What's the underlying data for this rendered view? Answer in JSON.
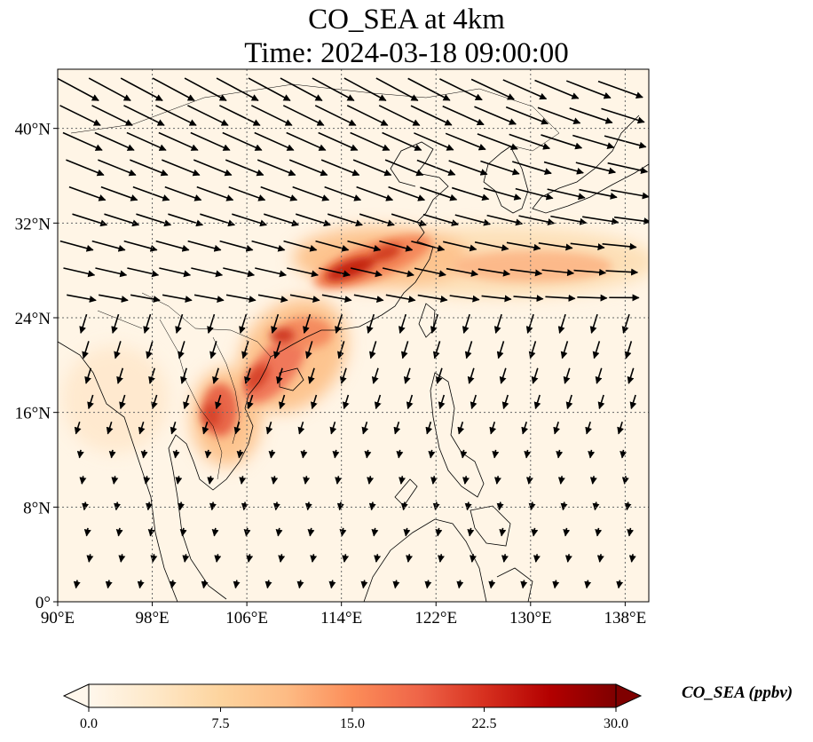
{
  "title": "CO_SEA at 4km",
  "subtitle": "Time: 2024-03-18 09:00:00",
  "map": {
    "lon_range": [
      90,
      140
    ],
    "lat_range": [
      0,
      45
    ],
    "lon_ticks": [
      {
        "value": 90,
        "label": "90°E"
      },
      {
        "value": 98,
        "label": "98°E"
      },
      {
        "value": 106,
        "label": "106°E"
      },
      {
        "value": 114,
        "label": "114°E"
      },
      {
        "value": 122,
        "label": "122°E"
      },
      {
        "value": 130,
        "label": "130°E"
      },
      {
        "value": 138,
        "label": "138°E"
      }
    ],
    "lat_ticks": [
      {
        "value": 0,
        "label": "0°"
      },
      {
        "value": 8,
        "label": "8°N"
      },
      {
        "value": 16,
        "label": "16°N"
      },
      {
        "value": 24,
        "label": "24°N"
      },
      {
        "value": 32,
        "label": "32°N"
      },
      {
        "value": 40,
        "label": "40°N"
      }
    ],
    "gridlines": true
  },
  "colorbar": {
    "label": "CO_SEA (ppbv)",
    "min": 0,
    "max": 30,
    "ticks": [
      "0.0",
      "7.5",
      "15.0",
      "22.5",
      "30.0"
    ],
    "colormap": [
      "#fff7ec",
      "#fee8c8",
      "#fdd49e",
      "#fdbb84",
      "#fc8d59",
      "#ef6548",
      "#d7301f",
      "#b30000",
      "#7f0000"
    ],
    "extend": "both"
  }
}
